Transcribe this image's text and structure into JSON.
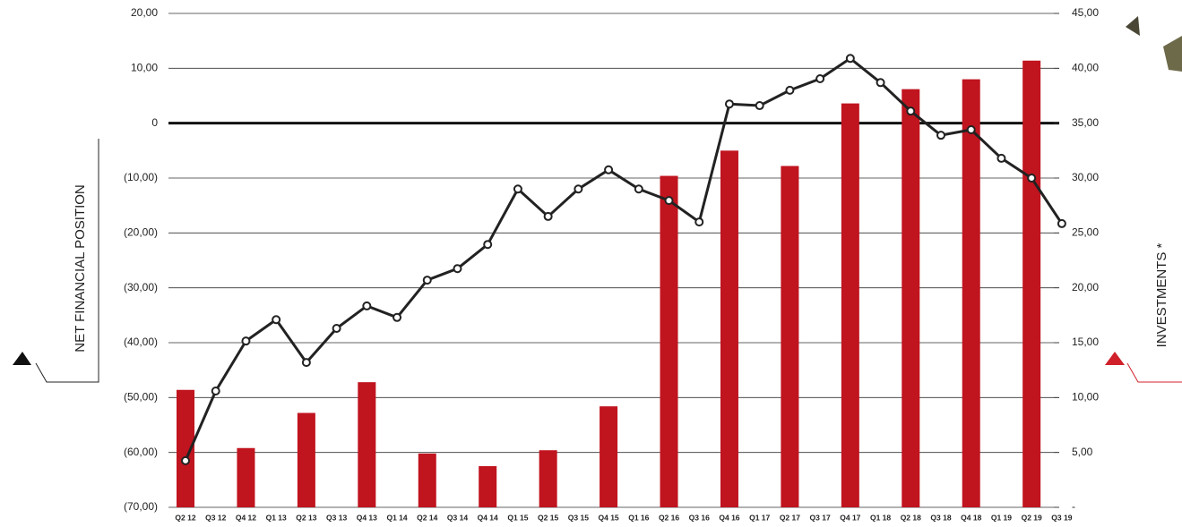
{
  "chart_data": {
    "type": "bar-line",
    "y_label": "NET FINANCIAL POSITION",
    "y2_label": "INVESTMENTS *",
    "categories": [
      "Q2 12",
      "Q3 12",
      "Q4 12",
      "Q1 13",
      "Q2 13",
      "Q3 13",
      "Q4 13",
      "Q1 14",
      "Q2 14",
      "Q3 14",
      "Q4 14",
      "Q1 15",
      "Q2 15",
      "Q3 15",
      "Q4 15",
      "Q1 16",
      "Q2 16",
      "Q3 16",
      "Q4 16",
      "Q1 17",
      "Q2 17",
      "Q3 17",
      "Q4 17",
      "Q1 18",
      "Q2 18",
      "Q3 18",
      "Q4 18",
      "Q1 19",
      "Q2 19",
      "Q3 19"
    ],
    "series": [
      {
        "name": "INVESTMENTS *",
        "type": "bar",
        "axis": "y2",
        "color": "#c0141f",
        "values": [
          10.7,
          null,
          5.4,
          null,
          8.6,
          null,
          11.4,
          null,
          4.9,
          null,
          3.75,
          null,
          5.2,
          null,
          9.2,
          null,
          30.2,
          null,
          32.5,
          null,
          31.1,
          null,
          36.8,
          null,
          38.1,
          null,
          39.0,
          null,
          40.7,
          null
        ]
      },
      {
        "name": "NET FINANCIAL POSITION",
        "type": "line",
        "axis": "y",
        "color": "#222222",
        "values": [
          -61.5,
          -48.8,
          -39.7,
          -35.8,
          -43.6,
          -37.4,
          -33.3,
          -35.4,
          -28.6,
          -26.5,
          -22.1,
          -12.0,
          -17.0,
          -12.0,
          -8.5,
          -12.0,
          -14.1,
          -18.0,
          3.5,
          3.2,
          6.0,
          8.1,
          11.8,
          7.4,
          2.2,
          -2.2,
          -1.2,
          -6.4,
          -10.0,
          -18.3
        ]
      }
    ],
    "ylim": [
      -70,
      20
    ],
    "yticks": [
      {
        "value": 20,
        "label": "20,00"
      },
      {
        "value": 10,
        "label": "10,00"
      },
      0,
      {
        "value": -10,
        "label": "(10,00)"
      },
      {
        "value": -20,
        "label": "(20,00)"
      },
      {
        "value": -30,
        "label": "(30,00)"
      },
      {
        "value": -40,
        "label": "(40,00)"
      },
      {
        "value": -50,
        "label": "(50,00)"
      },
      {
        "value": -60,
        "label": "(60,00)"
      },
      {
        "value": -70,
        "label": "(70,00)"
      }
    ],
    "y2lim": [
      0,
      45
    ],
    "y2ticks": [
      {
        "value": 45,
        "label": "45,00"
      },
      {
        "value": 40,
        "label": "40,00"
      },
      {
        "value": 35,
        "label": "35,00"
      },
      {
        "value": 30,
        "label": "30,00"
      },
      {
        "value": 25,
        "label": "25,00"
      },
      {
        "value": 20,
        "label": "20,00"
      },
      {
        "value": 15,
        "label": "15,00"
      },
      {
        "value": 10,
        "label": "10,00"
      },
      {
        "value": 5,
        "label": "5,00"
      },
      {
        "value": 0,
        "label": "-"
      }
    ],
    "grid": true,
    "zero_line": true
  }
}
